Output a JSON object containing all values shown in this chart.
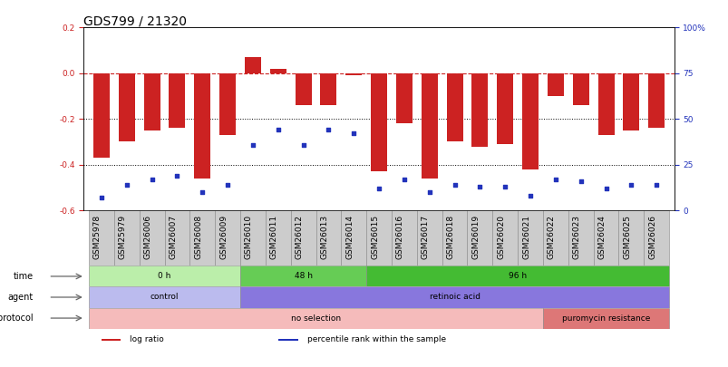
{
  "title": "GDS799 / 21320",
  "samples": [
    "GSM25978",
    "GSM25979",
    "GSM26006",
    "GSM26007",
    "GSM26008",
    "GSM26009",
    "GSM26010",
    "GSM26011",
    "GSM26012",
    "GSM26013",
    "GSM26014",
    "GSM26015",
    "GSM26016",
    "GSM26017",
    "GSM26018",
    "GSM26019",
    "GSM26020",
    "GSM26021",
    "GSM26022",
    "GSM26023",
    "GSM26024",
    "GSM26025",
    "GSM26026"
  ],
  "log_ratio": [
    -0.37,
    -0.3,
    -0.25,
    -0.24,
    -0.46,
    -0.27,
    0.07,
    0.02,
    -0.14,
    -0.14,
    -0.01,
    -0.43,
    -0.22,
    -0.46,
    -0.3,
    -0.32,
    -0.31,
    -0.42,
    -0.1,
    -0.14,
    -0.27,
    -0.25,
    -0.24
  ],
  "percentile": [
    7,
    14,
    17,
    19,
    10,
    14,
    36,
    44,
    36,
    44,
    42,
    12,
    17,
    10,
    14,
    13,
    13,
    8,
    17,
    16,
    12,
    14,
    14
  ],
  "bar_color": "#cc2222",
  "dot_color": "#2233bb",
  "ylim_left": [
    -0.6,
    0.2
  ],
  "ylim_right": [
    0,
    100
  ],
  "yticks_left": [
    -0.6,
    -0.4,
    -0.2,
    0.0,
    0.2
  ],
  "yticks_right": [
    0,
    25,
    50,
    75,
    100
  ],
  "ytick_labels_right": [
    "0",
    "25",
    "50",
    "75",
    "100%"
  ],
  "hline_dashed": 0.0,
  "hline_dotted1": -0.2,
  "hline_dotted2": -0.4,
  "time_groups": [
    {
      "label": "0 h",
      "start": 0,
      "end": 5,
      "color": "#bbeeaa"
    },
    {
      "label": "48 h",
      "start": 6,
      "end": 10,
      "color": "#66cc55"
    },
    {
      "label": "96 h",
      "start": 11,
      "end": 22,
      "color": "#44bb33"
    }
  ],
  "agent_groups": [
    {
      "label": "control",
      "start": 0,
      "end": 5,
      "color": "#bbbbee"
    },
    {
      "label": "retinoic acid",
      "start": 6,
      "end": 22,
      "color": "#8877dd"
    }
  ],
  "growth_groups": [
    {
      "label": "no selection",
      "start": 0,
      "end": 17,
      "color": "#f5bbbb"
    },
    {
      "label": "puromycin resistance",
      "start": 18,
      "end": 22,
      "color": "#dd7777"
    }
  ],
  "legend_items": [
    {
      "label": "log ratio",
      "color": "#cc2222"
    },
    {
      "label": "percentile rank within the sample",
      "color": "#2233bb"
    }
  ],
  "bg_color": "#ffffff",
  "title_fontsize": 10,
  "tick_fontsize": 6.5,
  "label_fontsize": 8,
  "row_label_fontsize": 8,
  "sample_box_color": "#cccccc",
  "sample_box_edge": "#888888"
}
